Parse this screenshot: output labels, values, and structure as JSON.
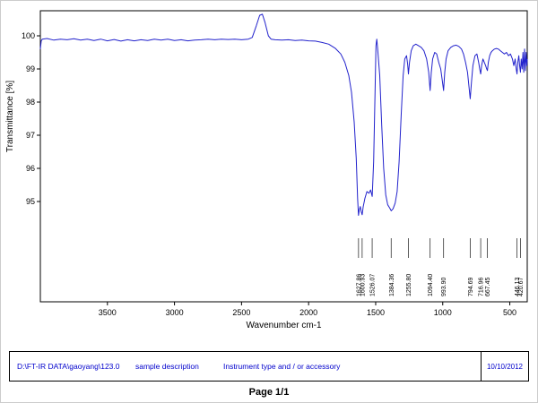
{
  "page": {
    "page_label": "Page 1/1"
  },
  "footer": {
    "file_path": "D:\\FT-IR DATA\\gaoyang\\123.0",
    "sample_description": "sample description",
    "instrument": "Instrument type and / or accessory",
    "date": "10/10/2012"
  },
  "chart_data": {
    "type": "line",
    "title": "",
    "xlabel": "Wavenumber cm-1",
    "ylabel": "Transmittance [%]",
    "xlim": [
      4000,
      370
    ],
    "x_ticks": [
      3500,
      3000,
      2500,
      2000,
      1500,
      1000,
      500
    ],
    "y_ticks": [
      100,
      99,
      98,
      97,
      96,
      95
    ],
    "grid": false,
    "legend": "none",
    "line_color": "#2222cc",
    "axis_color": "#000000",
    "peak_label_color": "#222222",
    "peak_labels": [
      "1627.86",
      "1600.93",
      "1526.07",
      "1384.36",
      "1255.80",
      "1094.40",
      "993.90",
      "794.69",
      "716.96",
      "667.45",
      "446.13",
      "420.67"
    ],
    "series": [
      {
        "name": "transmittance",
        "points": [
          [
            4000,
            99.6
          ],
          [
            3993,
            99.85
          ],
          [
            3985,
            99.9
          ],
          [
            3950,
            99.92
          ],
          [
            3900,
            99.87
          ],
          [
            3850,
            99.9
          ],
          [
            3800,
            99.88
          ],
          [
            3750,
            99.91
          ],
          [
            3700,
            99.87
          ],
          [
            3650,
            99.9
          ],
          [
            3600,
            99.86
          ],
          [
            3550,
            99.9
          ],
          [
            3500,
            99.85
          ],
          [
            3450,
            99.89
          ],
          [
            3400,
            99.84
          ],
          [
            3350,
            99.88
          ],
          [
            3300,
            99.85
          ],
          [
            3250,
            99.88
          ],
          [
            3200,
            99.86
          ],
          [
            3150,
            99.9
          ],
          [
            3100,
            99.87
          ],
          [
            3050,
            99.9
          ],
          [
            3000,
            99.86
          ],
          [
            2950,
            99.88
          ],
          [
            2900,
            99.85
          ],
          [
            2850,
            99.87
          ],
          [
            2800,
            99.88
          ],
          [
            2750,
            99.9
          ],
          [
            2700,
            99.88
          ],
          [
            2650,
            99.9
          ],
          [
            2600,
            99.89
          ],
          [
            2550,
            99.9
          ],
          [
            2500,
            99.88
          ],
          [
            2450,
            99.9
          ],
          [
            2420,
            99.95
          ],
          [
            2390,
            100.3
          ],
          [
            2365,
            100.62
          ],
          [
            2345,
            100.65
          ],
          [
            2325,
            100.4
          ],
          [
            2300,
            100.0
          ],
          [
            2280,
            99.9
          ],
          [
            2250,
            99.88
          ],
          [
            2200,
            99.87
          ],
          [
            2150,
            99.88
          ],
          [
            2100,
            99.86
          ],
          [
            2050,
            99.87
          ],
          [
            2000,
            99.85
          ],
          [
            1950,
            99.84
          ],
          [
            1900,
            99.8
          ],
          [
            1850,
            99.75
          ],
          [
            1800,
            99.62
          ],
          [
            1760,
            99.45
          ],
          [
            1730,
            99.2
          ],
          [
            1700,
            98.8
          ],
          [
            1680,
            98.3
          ],
          [
            1660,
            97.4
          ],
          [
            1645,
            96.3
          ],
          [
            1635,
            95.1
          ],
          [
            1628,
            94.58
          ],
          [
            1622,
            94.75
          ],
          [
            1615,
            94.85
          ],
          [
            1608,
            94.7
          ],
          [
            1601,
            94.6
          ],
          [
            1593,
            94.85
          ],
          [
            1580,
            95.1
          ],
          [
            1565,
            95.3
          ],
          [
            1550,
            95.25
          ],
          [
            1538,
            95.35
          ],
          [
            1526,
            95.15
          ],
          [
            1515,
            96.2
          ],
          [
            1505,
            98.2
          ],
          [
            1498,
            99.7
          ],
          [
            1492,
            99.9
          ],
          [
            1485,
            99.6
          ],
          [
            1470,
            98.8
          ],
          [
            1455,
            97.3
          ],
          [
            1440,
            96.0
          ],
          [
            1425,
            95.2
          ],
          [
            1410,
            94.9
          ],
          [
            1395,
            94.8
          ],
          [
            1384,
            94.72
          ],
          [
            1370,
            94.78
          ],
          [
            1355,
            94.95
          ],
          [
            1340,
            95.3
          ],
          [
            1325,
            96.2
          ],
          [
            1310,
            97.6
          ],
          [
            1295,
            98.8
          ],
          [
            1283,
            99.3
          ],
          [
            1270,
            99.4
          ],
          [
            1262,
            99.15
          ],
          [
            1256,
            98.85
          ],
          [
            1248,
            99.2
          ],
          [
            1235,
            99.55
          ],
          [
            1220,
            99.7
          ],
          [
            1200,
            99.75
          ],
          [
            1180,
            99.7
          ],
          [
            1160,
            99.65
          ],
          [
            1140,
            99.55
          ],
          [
            1120,
            99.3
          ],
          [
            1105,
            98.9
          ],
          [
            1094,
            98.35
          ],
          [
            1085,
            98.9
          ],
          [
            1075,
            99.3
          ],
          [
            1060,
            99.5
          ],
          [
            1045,
            99.45
          ],
          [
            1030,
            99.2
          ],
          [
            1015,
            99.0
          ],
          [
            1005,
            98.7
          ],
          [
            994,
            98.35
          ],
          [
            985,
            98.9
          ],
          [
            975,
            99.3
          ],
          [
            960,
            99.55
          ],
          [
            940,
            99.65
          ],
          [
            920,
            99.7
          ],
          [
            900,
            99.72
          ],
          [
            880,
            99.68
          ],
          [
            860,
            99.6
          ],
          [
            845,
            99.45
          ],
          [
            830,
            99.2
          ],
          [
            815,
            98.9
          ],
          [
            805,
            98.5
          ],
          [
            795,
            98.1
          ],
          [
            786,
            98.6
          ],
          [
            775,
            99.1
          ],
          [
            760,
            99.4
          ],
          [
            745,
            99.45
          ],
          [
            732,
            99.2
          ],
          [
            724,
            99.0
          ],
          [
            717,
            98.85
          ],
          [
            710,
            99.1
          ],
          [
            700,
            99.3
          ],
          [
            690,
            99.2
          ],
          [
            680,
            99.1
          ],
          [
            672,
            99.0
          ],
          [
            667,
            98.95
          ],
          [
            660,
            99.2
          ],
          [
            650,
            99.4
          ],
          [
            640,
            99.5
          ],
          [
            630,
            99.55
          ],
          [
            615,
            99.6
          ],
          [
            600,
            99.62
          ],
          [
            585,
            99.6
          ],
          [
            570,
            99.55
          ],
          [
            555,
            99.5
          ],
          [
            540,
            99.45
          ],
          [
            525,
            99.5
          ],
          [
            510,
            99.4
          ],
          [
            495,
            99.45
          ],
          [
            480,
            99.3
          ],
          [
            470,
            99.1
          ],
          [
            460,
            99.3
          ],
          [
            452,
            99.0
          ],
          [
            446,
            98.85
          ],
          [
            440,
            99.2
          ],
          [
            433,
            99.4
          ],
          [
            427,
            99.1
          ],
          [
            421,
            98.9
          ],
          [
            415,
            99.3
          ],
          [
            408,
            99.0
          ],
          [
            402,
            99.5
          ],
          [
            396,
            98.9
          ],
          [
            390,
            99.6
          ],
          [
            384,
            98.95
          ],
          [
            378,
            99.5
          ],
          [
            373,
            99.1
          ],
          [
            370,
            99.3
          ]
        ]
      }
    ]
  }
}
